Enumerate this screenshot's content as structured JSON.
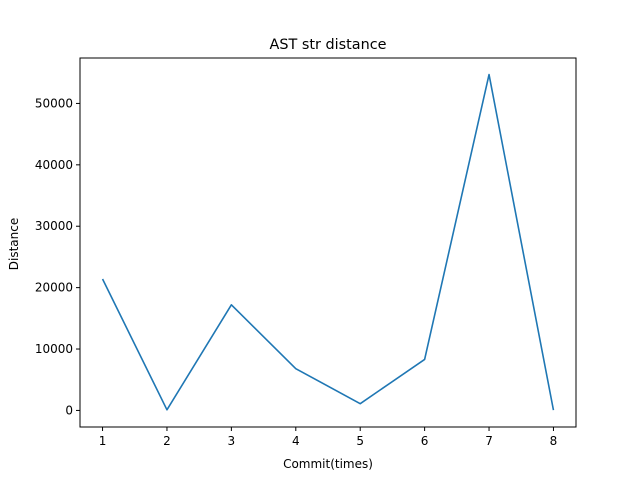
{
  "chart_data": {
    "type": "line",
    "title": "AST str distance",
    "xlabel": "Commit(times)",
    "ylabel": "Distance",
    "x": [
      1,
      2,
      3,
      4,
      5,
      6,
      7,
      8
    ],
    "series": [
      {
        "values": [
          21400,
          100,
          17200,
          6800,
          1100,
          8300,
          54700,
          50
        ]
      }
    ],
    "xlim": [
      0.65,
      8.35
    ],
    "ylim": [
      -2700,
      57400
    ],
    "xticks": [
      1,
      2,
      3,
      4,
      5,
      6,
      7,
      8
    ],
    "yticks": [
      0,
      10000,
      20000,
      30000,
      40000,
      50000
    ],
    "grid": false,
    "line_color": "#1f77b4"
  }
}
